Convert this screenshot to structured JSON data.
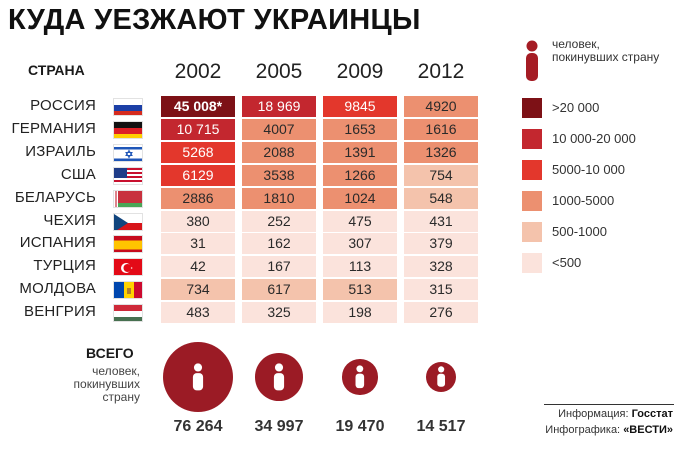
{
  "title": "КУДА УЕЗЖАЮТ УКРАИНЦЫ",
  "chart_data": {
    "type": "table",
    "row_header": "СТРАНА",
    "years": [
      "2002",
      "2005",
      "2009",
      "2012"
    ],
    "rows": [
      {
        "country": "РОССИЯ",
        "flag": "russia",
        "values": [
          "45 008*",
          "18 969",
          "9845",
          "4920"
        ]
      },
      {
        "country": "ГЕРМАНИЯ",
        "flag": "germany",
        "values": [
          "10 715",
          "4007",
          "1653",
          "1616"
        ]
      },
      {
        "country": "ИЗРАИЛЬ",
        "flag": "israel",
        "values": [
          "5268",
          "2088",
          "1391",
          "1326"
        ]
      },
      {
        "country": "США",
        "flag": "usa",
        "values": [
          "6129",
          "3538",
          "1266",
          "754"
        ]
      },
      {
        "country": "БЕЛАРУСЬ",
        "flag": "belarus",
        "values": [
          "2886",
          "1810",
          "1024",
          "548"
        ]
      },
      {
        "country": "ЧЕХИЯ",
        "flag": "czech",
        "values": [
          "380",
          "252",
          "475",
          "431"
        ]
      },
      {
        "country": "ИСПАНИЯ",
        "flag": "spain",
        "values": [
          "31",
          "162",
          "307",
          "379"
        ]
      },
      {
        "country": "ТУРЦИЯ",
        "flag": "turkey",
        "values": [
          "42",
          "167",
          "113",
          "328"
        ]
      },
      {
        "country": "МОЛДОВА",
        "flag": "moldova",
        "values": [
          "734",
          "617",
          "513",
          "315"
        ]
      },
      {
        "country": "ВЕНГРИЯ",
        "flag": "hungary",
        "values": [
          "483",
          "325",
          "198",
          "276"
        ]
      }
    ],
    "legend": {
      "person_label": "человек, покинувших страну",
      "bins": [
        {
          "label": ">20 000",
          "min": 20000,
          "color": "#7d1116"
        },
        {
          "label": "10 000-20 000",
          "min": 10000,
          "color": "#c3272f"
        },
        {
          "label": "5000-10 000",
          "min": 5000,
          "color": "#e3372c"
        },
        {
          "label": "1000-5000",
          "min": 1000,
          "color": "#ec9070"
        },
        {
          "label": "500-1000",
          "min": 500,
          "color": "#f4c3ac"
        },
        {
          "label": "<500",
          "min": 0,
          "color": "#fbe3dc"
        }
      ]
    },
    "totals": {
      "label": "ВСЕГО",
      "sublabel": "человек, покинувших страну",
      "values": [
        "76 264",
        "34 997",
        "19 470",
        "14 517"
      ],
      "numbers": [
        76264,
        34997,
        19470,
        14517
      ]
    }
  },
  "credits": {
    "info_prefix": "Информация:",
    "info_source": "Госстат",
    "graphic_prefix": "Инфографика:",
    "graphic_source": "«ВЕСТИ»"
  },
  "colors": {
    "bubble": "#9b1b25",
    "legend_icon": "#a51c24"
  }
}
